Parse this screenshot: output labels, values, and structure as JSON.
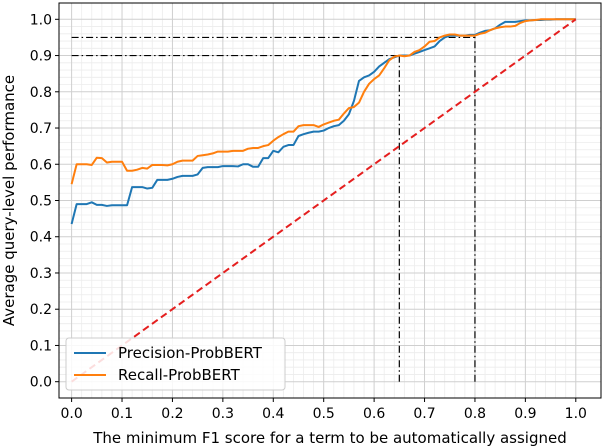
{
  "chart_data": {
    "type": "line",
    "title": "",
    "xlabel": "The minimum F1 score for a term to be automatically assigned",
    "ylabel": "Average query-level performance",
    "xlim": [
      -0.025,
      1.05
    ],
    "ylim": [
      -0.045,
      1.045
    ],
    "xticks": [
      "0.0",
      "0.1",
      "0.2",
      "0.3",
      "0.4",
      "0.5",
      "0.6",
      "0.7",
      "0.8",
      "0.9",
      "1.0"
    ],
    "yticks": [
      "0.0",
      "0.1",
      "0.2",
      "0.3",
      "0.4",
      "0.5",
      "0.6",
      "0.7",
      "0.8",
      "0.9",
      "1.0"
    ],
    "grid": "major and minor",
    "legend_position": "lower-left",
    "series": [
      {
        "name": "Precision-ProbBERT",
        "color": "#1f77b4",
        "style": "solid",
        "points": [
          [
            0.0,
            0.435
          ],
          [
            0.01,
            0.49
          ],
          [
            0.02,
            0.49
          ],
          [
            0.03,
            0.49
          ],
          [
            0.04,
            0.495
          ],
          [
            0.05,
            0.488
          ],
          [
            0.06,
            0.488
          ],
          [
            0.07,
            0.485
          ],
          [
            0.08,
            0.487
          ],
          [
            0.09,
            0.487
          ],
          [
            0.1,
            0.487
          ],
          [
            0.11,
            0.487
          ],
          [
            0.12,
            0.537
          ],
          [
            0.13,
            0.537
          ],
          [
            0.14,
            0.537
          ],
          [
            0.15,
            0.533
          ],
          [
            0.16,
            0.535
          ],
          [
            0.17,
            0.557
          ],
          [
            0.18,
            0.557
          ],
          [
            0.19,
            0.557
          ],
          [
            0.2,
            0.56
          ],
          [
            0.21,
            0.565
          ],
          [
            0.22,
            0.568
          ],
          [
            0.23,
            0.568
          ],
          [
            0.24,
            0.568
          ],
          [
            0.25,
            0.572
          ],
          [
            0.26,
            0.59
          ],
          [
            0.27,
            0.592
          ],
          [
            0.28,
            0.592
          ],
          [
            0.29,
            0.592
          ],
          [
            0.3,
            0.595
          ],
          [
            0.31,
            0.595
          ],
          [
            0.32,
            0.595
          ],
          [
            0.33,
            0.594
          ],
          [
            0.34,
            0.6
          ],
          [
            0.35,
            0.6
          ],
          [
            0.36,
            0.593
          ],
          [
            0.37,
            0.593
          ],
          [
            0.38,
            0.617
          ],
          [
            0.39,
            0.617
          ],
          [
            0.4,
            0.637
          ],
          [
            0.41,
            0.633
          ],
          [
            0.42,
            0.648
          ],
          [
            0.43,
            0.653
          ],
          [
            0.44,
            0.653
          ],
          [
            0.45,
            0.678
          ],
          [
            0.46,
            0.683
          ],
          [
            0.47,
            0.687
          ],
          [
            0.48,
            0.69
          ],
          [
            0.49,
            0.69
          ],
          [
            0.5,
            0.693
          ],
          [
            0.51,
            0.7
          ],
          [
            0.52,
            0.705
          ],
          [
            0.53,
            0.708
          ],
          [
            0.54,
            0.72
          ],
          [
            0.55,
            0.738
          ],
          [
            0.56,
            0.775
          ],
          [
            0.57,
            0.83
          ],
          [
            0.58,
            0.84
          ],
          [
            0.59,
            0.845
          ],
          [
            0.6,
            0.855
          ],
          [
            0.61,
            0.87
          ],
          [
            0.62,
            0.88
          ],
          [
            0.63,
            0.89
          ],
          [
            0.64,
            0.895
          ],
          [
            0.65,
            0.9
          ],
          [
            0.66,
            0.9
          ],
          [
            0.67,
            0.9
          ],
          [
            0.68,
            0.905
          ],
          [
            0.69,
            0.91
          ],
          [
            0.7,
            0.915
          ],
          [
            0.71,
            0.92
          ],
          [
            0.72,
            0.925
          ],
          [
            0.73,
            0.94
          ],
          [
            0.74,
            0.95
          ],
          [
            0.75,
            0.955
          ],
          [
            0.76,
            0.955
          ],
          [
            0.77,
            0.955
          ],
          [
            0.78,
            0.955
          ],
          [
            0.79,
            0.957
          ],
          [
            0.8,
            0.957
          ],
          [
            0.81,
            0.963
          ],
          [
            0.82,
            0.968
          ],
          [
            0.83,
            0.97
          ],
          [
            0.84,
            0.975
          ],
          [
            0.85,
            0.985
          ],
          [
            0.86,
            0.993
          ],
          [
            0.87,
            0.993
          ],
          [
            0.88,
            0.993
          ],
          [
            0.89,
            0.995
          ],
          [
            0.9,
            0.997
          ],
          [
            0.91,
            0.997
          ],
          [
            0.92,
            0.998
          ],
          [
            0.93,
            0.998
          ],
          [
            0.94,
            0.999
          ],
          [
            0.95,
            0.999
          ],
          [
            0.96,
            1.0
          ],
          [
            0.97,
            1.0
          ],
          [
            0.98,
            1.0
          ],
          [
            0.99,
            1.0
          ],
          [
            1.0,
            1.0
          ]
        ]
      },
      {
        "name": "Recall-ProbBERT",
        "color": "#ff7f0e",
        "style": "solid",
        "points": [
          [
            0.0,
            0.545
          ],
          [
            0.01,
            0.6
          ],
          [
            0.02,
            0.6
          ],
          [
            0.03,
            0.6
          ],
          [
            0.04,
            0.598
          ],
          [
            0.05,
            0.618
          ],
          [
            0.06,
            0.617
          ],
          [
            0.07,
            0.605
          ],
          [
            0.08,
            0.607
          ],
          [
            0.09,
            0.607
          ],
          [
            0.1,
            0.607
          ],
          [
            0.11,
            0.582
          ],
          [
            0.12,
            0.582
          ],
          [
            0.13,
            0.585
          ],
          [
            0.14,
            0.59
          ],
          [
            0.15,
            0.588
          ],
          [
            0.16,
            0.598
          ],
          [
            0.17,
            0.598
          ],
          [
            0.18,
            0.598
          ],
          [
            0.19,
            0.597
          ],
          [
            0.2,
            0.6
          ],
          [
            0.21,
            0.607
          ],
          [
            0.22,
            0.61
          ],
          [
            0.23,
            0.61
          ],
          [
            0.24,
            0.61
          ],
          [
            0.25,
            0.623
          ],
          [
            0.26,
            0.625
          ],
          [
            0.27,
            0.627
          ],
          [
            0.28,
            0.63
          ],
          [
            0.29,
            0.635
          ],
          [
            0.3,
            0.635
          ],
          [
            0.31,
            0.635
          ],
          [
            0.32,
            0.637
          ],
          [
            0.33,
            0.637
          ],
          [
            0.34,
            0.637
          ],
          [
            0.35,
            0.643
          ],
          [
            0.36,
            0.645
          ],
          [
            0.37,
            0.645
          ],
          [
            0.38,
            0.65
          ],
          [
            0.39,
            0.653
          ],
          [
            0.4,
            0.665
          ],
          [
            0.41,
            0.675
          ],
          [
            0.42,
            0.683
          ],
          [
            0.43,
            0.69
          ],
          [
            0.44,
            0.69
          ],
          [
            0.45,
            0.705
          ],
          [
            0.46,
            0.708
          ],
          [
            0.47,
            0.708
          ],
          [
            0.48,
            0.708
          ],
          [
            0.49,
            0.703
          ],
          [
            0.5,
            0.71
          ],
          [
            0.51,
            0.715
          ],
          [
            0.52,
            0.72
          ],
          [
            0.53,
            0.723
          ],
          [
            0.54,
            0.74
          ],
          [
            0.55,
            0.755
          ],
          [
            0.56,
            0.758
          ],
          [
            0.57,
            0.77
          ],
          [
            0.58,
            0.8
          ],
          [
            0.59,
            0.822
          ],
          [
            0.6,
            0.835
          ],
          [
            0.61,
            0.845
          ],
          [
            0.62,
            0.865
          ],
          [
            0.63,
            0.887
          ],
          [
            0.64,
            0.897
          ],
          [
            0.65,
            0.9
          ],
          [
            0.66,
            0.898
          ],
          [
            0.67,
            0.9
          ],
          [
            0.68,
            0.91
          ],
          [
            0.69,
            0.915
          ],
          [
            0.7,
            0.925
          ],
          [
            0.71,
            0.938
          ],
          [
            0.72,
            0.94
          ],
          [
            0.73,
            0.95
          ],
          [
            0.74,
            0.955
          ],
          [
            0.75,
            0.958
          ],
          [
            0.76,
            0.958
          ],
          [
            0.77,
            0.955
          ],
          [
            0.78,
            0.955
          ],
          [
            0.79,
            0.955
          ],
          [
            0.8,
            0.955
          ],
          [
            0.81,
            0.96
          ],
          [
            0.82,
            0.963
          ],
          [
            0.83,
            0.97
          ],
          [
            0.84,
            0.975
          ],
          [
            0.85,
            0.978
          ],
          [
            0.86,
            0.98
          ],
          [
            0.87,
            0.98
          ],
          [
            0.88,
            0.982
          ],
          [
            0.89,
            0.99
          ],
          [
            0.9,
            0.995
          ],
          [
            0.91,
            0.997
          ],
          [
            0.92,
            0.998
          ],
          [
            0.93,
            1.0
          ],
          [
            0.94,
            1.0
          ],
          [
            0.95,
            1.0
          ],
          [
            0.96,
            1.0
          ],
          [
            0.97,
            1.0
          ],
          [
            0.98,
            1.0
          ],
          [
            0.99,
            1.0
          ],
          [
            1.0,
            1.0
          ]
        ]
      },
      {
        "name": "",
        "color": "#e51f1f",
        "style": "dashed",
        "points": [
          [
            0.0,
            0.0
          ],
          [
            1.0,
            1.0
          ]
        ]
      }
    ],
    "reference_lines": [
      {
        "type": "horizontal",
        "y": 0.95,
        "x_from": 0.0,
        "x_to": 0.8,
        "style": "dashdot",
        "color": "#000000"
      },
      {
        "type": "horizontal",
        "y": 0.9,
        "x_from": 0.0,
        "x_to": 0.65,
        "style": "dashdot",
        "color": "#000000"
      },
      {
        "type": "vertical",
        "x": 0.8,
        "y_from": 0.0,
        "y_to": 0.955,
        "style": "dashdot",
        "color": "#000000"
      },
      {
        "type": "vertical",
        "x": 0.65,
        "y_from": 0.0,
        "y_to": 0.9,
        "style": "dashdot",
        "color": "#000000"
      }
    ],
    "legend": [
      "Precision-ProbBERT",
      "Recall-ProbBERT"
    ]
  }
}
